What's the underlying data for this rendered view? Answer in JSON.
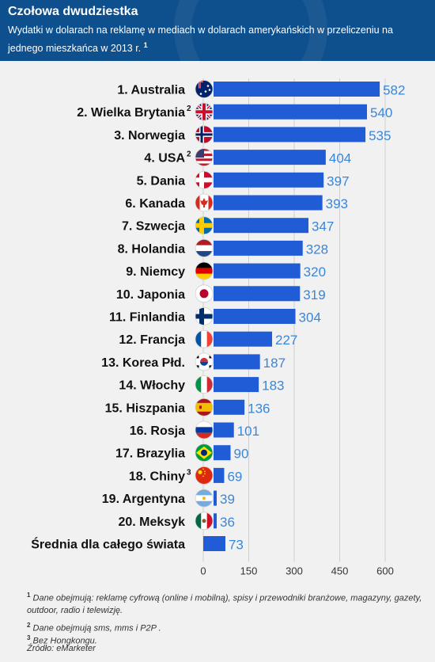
{
  "header": {
    "title": "Czołowa dwudziestka",
    "subtitle": "Wydatki w dolarach na reklamę w mediach w dolarach amerykańskich w przeliczeniu na jednego mieszkańca w 2013 r.",
    "subtitle_note": "1"
  },
  "chart_data": {
    "type": "bar",
    "orientation": "horizontal",
    "categories": [
      "1. Australia",
      "2. Wielka Brytania",
      "3. Norwegia",
      "4. USA",
      "5. Dania",
      "6. Kanada",
      "7. Szwecja",
      "8. Holandia",
      "9. Niemcy",
      "10. Japonia",
      "11. Finlandia",
      "12. Francja",
      "13. Korea Płd.",
      "14. Włochy",
      "15. Hiszpania",
      "16. Rosja",
      "17. Brazylia",
      "18. Chiny",
      "19. Argentyna",
      "20. Meksyk",
      "Średnia dla całego świata"
    ],
    "notes": [
      "",
      "2",
      "",
      "2",
      "",
      "",
      "",
      "",
      "",
      "",
      "",
      "",
      "",
      "",
      "",
      "",
      "",
      "3",
      "",
      "",
      ""
    ],
    "flags": [
      "australia-flag",
      "uk-flag",
      "norway-flag",
      "usa-flag",
      "denmark-flag",
      "canada-flag",
      "sweden-flag",
      "netherlands-flag",
      "germany-flag",
      "japan-flag",
      "finland-flag",
      "france-flag",
      "south-korea-flag",
      "italy-flag",
      "spain-flag",
      "russia-flag",
      "brazil-flag",
      "china-flag",
      "argentina-flag",
      "mexico-flag",
      ""
    ],
    "values": [
      582,
      540,
      535,
      404,
      397,
      393,
      347,
      328,
      320,
      319,
      304,
      227,
      187,
      183,
      136,
      101,
      90,
      69,
      39,
      36,
      73
    ],
    "xlim": [
      0,
      600
    ],
    "xticks": [
      0,
      150,
      300,
      450,
      600
    ],
    "grid": true,
    "bar_color": "#1f5cd6",
    "value_label_color": "#3a86d8"
  },
  "footnotes": [
    {
      "mark": "1",
      "text": "Dane obejmują: reklamę cyfrową (online i mobilną), spisy i przewodniki branżowe, magazyny, gazety, outdoor, radio i telewizję."
    },
    {
      "mark": "2",
      "text": "Dane obejmują sms, mms i P2P ."
    },
    {
      "mark": "3",
      "text": "Bez Hongkongu."
    },
    {
      "mark": "",
      "text": "Źródło: eMarketer"
    }
  ],
  "colors": {
    "header_bg": "#0e4f8d",
    "panel_bg": "#f1f1f1"
  }
}
